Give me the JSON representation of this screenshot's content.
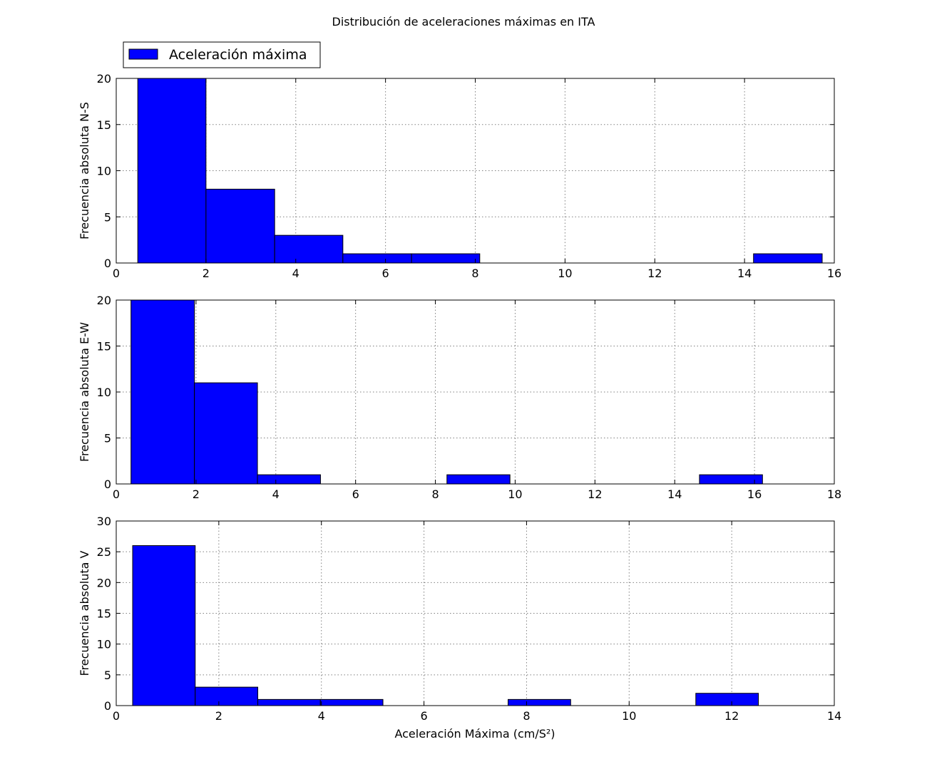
{
  "title": "Distribución de aceleraciones máximas en ITA",
  "legend": {
    "label": "Aceleración máxima",
    "placement": "top-left, above first panel"
  },
  "colors": {
    "bar_fill": "#0000ff",
    "bar_edge": "#000000",
    "grid": "#808080",
    "axis": "#000000"
  },
  "xlabel": "Aceleración Máxima (cm/S²)",
  "chart_data": [
    {
      "type": "bar",
      "ylabel": "Frecuencia absoluta N-S",
      "xlim": [
        0,
        16
      ],
      "ylim": [
        0,
        20
      ],
      "xticks": [
        0,
        2,
        4,
        6,
        8,
        10,
        12,
        14,
        16
      ],
      "yticks": [
        0,
        5,
        10,
        15,
        20
      ],
      "grid": true,
      "bins": [
        {
          "x0": 0.48,
          "x1": 2.0,
          "count": 20
        },
        {
          "x0": 2.0,
          "x1": 3.53,
          "count": 8
        },
        {
          "x0": 3.53,
          "x1": 5.05,
          "count": 3
        },
        {
          "x0": 5.05,
          "x1": 6.58,
          "count": 1
        },
        {
          "x0": 6.58,
          "x1": 8.1,
          "count": 1
        },
        {
          "x0": 8.1,
          "x1": 9.63,
          "count": 0
        },
        {
          "x0": 9.63,
          "x1": 11.15,
          "count": 0
        },
        {
          "x0": 11.15,
          "x1": 12.68,
          "count": 0
        },
        {
          "x0": 12.68,
          "x1": 14.2,
          "count": 0
        },
        {
          "x0": 14.2,
          "x1": 15.73,
          "count": 1
        }
      ]
    },
    {
      "type": "bar",
      "ylabel": "Frecuencia absoluta E-W",
      "xlim": [
        0,
        18
      ],
      "ylim": [
        0,
        20
      ],
      "xticks": [
        0,
        2,
        4,
        6,
        8,
        10,
        12,
        14,
        16,
        18
      ],
      "yticks": [
        0,
        5,
        10,
        15,
        20
      ],
      "grid": true,
      "bins": [
        {
          "x0": 0.37,
          "x1": 1.96,
          "count": 20
        },
        {
          "x0": 1.96,
          "x1": 3.54,
          "count": 11
        },
        {
          "x0": 3.54,
          "x1": 5.12,
          "count": 1
        },
        {
          "x0": 5.12,
          "x1": 6.7,
          "count": 0
        },
        {
          "x0": 6.7,
          "x1": 8.29,
          "count": 0
        },
        {
          "x0": 8.29,
          "x1": 9.87,
          "count": 1
        },
        {
          "x0": 9.87,
          "x1": 11.45,
          "count": 0
        },
        {
          "x0": 11.45,
          "x1": 13.04,
          "count": 0
        },
        {
          "x0": 13.04,
          "x1": 14.62,
          "count": 0
        },
        {
          "x0": 14.62,
          "x1": 16.2,
          "count": 1
        }
      ]
    },
    {
      "type": "bar",
      "ylabel": "Frecuencia absoluta V",
      "xlim": [
        0,
        14
      ],
      "ylim": [
        0,
        30
      ],
      "xticks": [
        0,
        2,
        4,
        6,
        8,
        10,
        12,
        14
      ],
      "yticks": [
        0,
        5,
        10,
        15,
        20,
        25,
        30
      ],
      "grid": true,
      "bins": [
        {
          "x0": 0.32,
          "x1": 1.54,
          "count": 26
        },
        {
          "x0": 1.54,
          "x1": 2.76,
          "count": 3
        },
        {
          "x0": 2.76,
          "x1": 3.98,
          "count": 1
        },
        {
          "x0": 3.98,
          "x1": 5.2,
          "count": 1
        },
        {
          "x0": 5.2,
          "x1": 6.42,
          "count": 0
        },
        {
          "x0": 6.42,
          "x1": 7.64,
          "count": 0
        },
        {
          "x0": 7.64,
          "x1": 8.86,
          "count": 1
        },
        {
          "x0": 8.86,
          "x1": 10.08,
          "count": 0
        },
        {
          "x0": 10.08,
          "x1": 11.3,
          "count": 0
        },
        {
          "x0": 11.3,
          "x1": 12.52,
          "count": 2
        }
      ]
    }
  ]
}
